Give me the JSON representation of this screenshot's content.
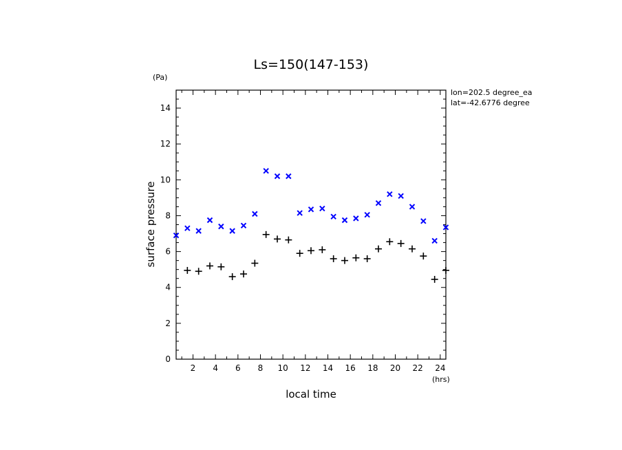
{
  "chart_data": {
    "type": "scatter",
    "title": "Ls=150(147-153)",
    "xlabel": "local time",
    "ylabel": "surface pressure",
    "x_unit": "(hrs)",
    "y_unit": "(Pa)",
    "annotations": [
      "lon=202.5 degree_ea",
      "lat=-42.6776 degree"
    ],
    "xlim": [
      0.5,
      24.5
    ],
    "ylim": [
      0,
      15
    ],
    "xticks": [
      2,
      4,
      6,
      8,
      10,
      12,
      14,
      16,
      18,
      20,
      22,
      24
    ],
    "yticks": [
      0,
      2,
      4,
      6,
      8,
      10,
      12,
      14
    ],
    "grid": false,
    "series": [
      {
        "marker": "x",
        "color": "#0000ff",
        "x": [
          0.5,
          1.5,
          2.5,
          3.5,
          4.5,
          5.5,
          6.5,
          7.5,
          8.5,
          9.5,
          10.5,
          11.5,
          12.5,
          13.5,
          14.5,
          15.5,
          16.5,
          17.5,
          18.5,
          19.5,
          20.5,
          21.5,
          22.5,
          23.5,
          24.5
        ],
        "values": [
          6.9,
          7.3,
          7.15,
          7.75,
          7.4,
          7.15,
          7.45,
          8.1,
          10.5,
          10.2,
          10.2,
          8.15,
          8.35,
          8.4,
          7.95,
          7.75,
          7.85,
          8.05,
          8.7,
          9.2,
          9.1,
          8.5,
          7.7,
          6.6,
          7.35
        ]
      },
      {
        "marker": "+",
        "color": "#000000",
        "x": [
          1.5,
          2.5,
          3.5,
          4.5,
          5.5,
          6.5,
          7.5,
          8.5,
          9.5,
          10.5,
          11.5,
          12.5,
          13.5,
          14.5,
          15.5,
          16.5,
          17.5,
          18.5,
          19.5,
          20.5,
          21.5,
          22.5,
          23.5,
          24.5
        ],
        "values": [
          4.95,
          4.9,
          5.2,
          5.15,
          4.6,
          4.75,
          5.35,
          6.95,
          6.7,
          6.65,
          5.9,
          6.05,
          6.1,
          5.6,
          5.5,
          5.65,
          5.6,
          6.15,
          6.55,
          6.45,
          6.15,
          5.75,
          4.45,
          4.95
        ]
      }
    ]
  }
}
